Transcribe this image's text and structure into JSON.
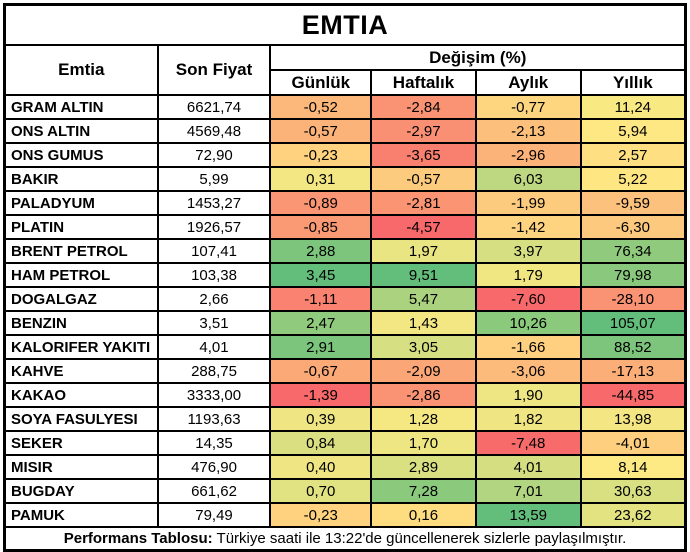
{
  "title": "EMTIA",
  "header": {
    "commodity": "Emtia",
    "last_price": "Son Fiyat",
    "change_group": "Değişim (%)",
    "periods": [
      "Günlük",
      "Haftalık",
      "Aylık",
      "Yıllık"
    ]
  },
  "footer": {
    "label_bold": "Performans Tablosu:",
    "text": " Türkiye saati ile 13:22'de güncellenerek sizlerle paylaşılmıştır."
  },
  "heatmap_scale": {
    "min_color": "#F8696B",
    "mid_color": "#FFEB84",
    "max_color": "#63BE7B"
  },
  "chart_data": {
    "type": "table",
    "title": "EMTIA",
    "columns": [
      "Emtia",
      "Son Fiyat",
      "Günlük",
      "Haftalık",
      "Aylık",
      "Yıllık"
    ],
    "rows": [
      {
        "name": "GRAM ALTIN",
        "price": "6621,74",
        "changes": [
          "-0,52",
          "-2,84",
          "-0,77",
          "11,24"
        ],
        "colors": [
          "#FCB87A",
          "#FA9373",
          "#FED680",
          "#F8E983"
        ]
      },
      {
        "name": "ONS ALTIN",
        "price": "4569,48",
        "changes": [
          "-0,57",
          "-2,97",
          "-2,13",
          "5,94"
        ],
        "colors": [
          "#FCB379",
          "#FA9073",
          "#FCC07C",
          "#FEE883"
        ]
      },
      {
        "name": "ONS GUMUS",
        "price": "72,90",
        "changes": [
          "-0,23",
          "-3,65",
          "-2,96",
          "2,57"
        ],
        "colors": [
          "#FED27F",
          "#F9806F",
          "#FCB379",
          "#FEE082"
        ]
      },
      {
        "name": "BAKIR",
        "price": "5,99",
        "changes": [
          "0,31",
          "-0,57",
          "6,03",
          "5,22"
        ],
        "colors": [
          "#F2E783",
          "#FDCB7E",
          "#BDD880",
          "#FEE683"
        ]
      },
      {
        "name": "PALADYUM",
        "price": "1453,27",
        "changes": [
          "-0,89",
          "-2,81",
          "-1,99",
          "-9,59"
        ],
        "colors": [
          "#FA9674",
          "#FA9473",
          "#FDCB7E",
          "#FCC17C"
        ]
      },
      {
        "name": "PLATIN",
        "price": "1926,57",
        "changes": [
          "-0,85",
          "-4,57",
          "-1,42",
          "-6,30"
        ],
        "colors": [
          "#FA9A74",
          "#F8696B",
          "#FED480",
          "#FDC97E"
        ]
      },
      {
        "name": "BRENT PETROL",
        "price": "107,41",
        "changes": [
          "2,88",
          "1,97",
          "3,97",
          "76,34"
        ],
        "colors": [
          "#7DC57C",
          "#E9E583",
          "#D6DF82",
          "#90CB7D"
        ]
      },
      {
        "name": "HAM PETROL",
        "price": "103,38",
        "changes": [
          "3,45",
          "9,51",
          "1,79",
          "79,98"
        ],
        "colors": [
          "#63BE7B",
          "#63BE7B",
          "#F0E783",
          "#8AC97D"
        ]
      },
      {
        "name": "DOGALGAZ",
        "price": "2,66",
        "changes": [
          "-1,11",
          "5,47",
          "-7,60",
          "-28,10"
        ],
        "colors": [
          "#F98270",
          "#ABD37F",
          "#F8696B",
          "#FA9373"
        ]
      },
      {
        "name": "BENZIN",
        "price": "3,51",
        "changes": [
          "2,47",
          "1,43",
          "10,26",
          "105,07"
        ],
        "colors": [
          "#8FCA7D",
          "#F2E783",
          "#8BC97D",
          "#63BE7B"
        ]
      },
      {
        "name": "KALORIFER YAKITI",
        "price": "4,01",
        "changes": [
          "2,91",
          "3,05",
          "-1,66",
          "88,52"
        ],
        "colors": [
          "#7BC57C",
          "#D6DF82",
          "#FED07F",
          "#7DC57C"
        ]
      },
      {
        "name": "KAHVE",
        "price": "288,75",
        "changes": [
          "-0,67",
          "-2,09",
          "-3,06",
          "-17,13"
        ],
        "colors": [
          "#FBAA77",
          "#FBA677",
          "#FCBA7B",
          "#FBAE78"
        ]
      },
      {
        "name": "KAKAO",
        "price": "3333,00",
        "changes": [
          "-1,39",
          "-2,86",
          "1,90",
          "-44,85"
        ],
        "colors": [
          "#F8696B",
          "#FA9373",
          "#EEE683",
          "#F8696B"
        ]
      },
      {
        "name": "SOYA FASULYESI",
        "price": "1193,63",
        "changes": [
          "0,39",
          "1,28",
          "1,82",
          "13,98"
        ],
        "colors": [
          "#EFE683",
          "#F5E883",
          "#EFE683",
          "#F4E783"
        ]
      },
      {
        "name": "SEKER",
        "price": "14,35",
        "changes": [
          "0,84",
          "1,70",
          "-7,48",
          "-4,01"
        ],
        "colors": [
          "#DAE081",
          "#EEE683",
          "#F86B6B",
          "#FDCF7E"
        ]
      },
      {
        "name": "MISIR",
        "price": "476,90",
        "changes": [
          "0,40",
          "2,89",
          "4,01",
          "8,14"
        ],
        "colors": [
          "#EFE683",
          "#D8E082",
          "#D5DF82",
          "#FDEA84"
        ]
      },
      {
        "name": "BUGDAY",
        "price": "661,62",
        "changes": [
          "0,70",
          "7,28",
          "7,01",
          "30,63"
        ],
        "colors": [
          "#E1E282",
          "#8BC97D",
          "#B1D580",
          "#D9E082"
        ]
      },
      {
        "name": "PAMUK",
        "price": "79,49",
        "changes": [
          "-0,23",
          "0,16",
          "13,59",
          "23,62"
        ],
        "colors": [
          "#FED27F",
          "#FEDD81",
          "#63BE7B",
          "#E4E382"
        ]
      }
    ]
  }
}
